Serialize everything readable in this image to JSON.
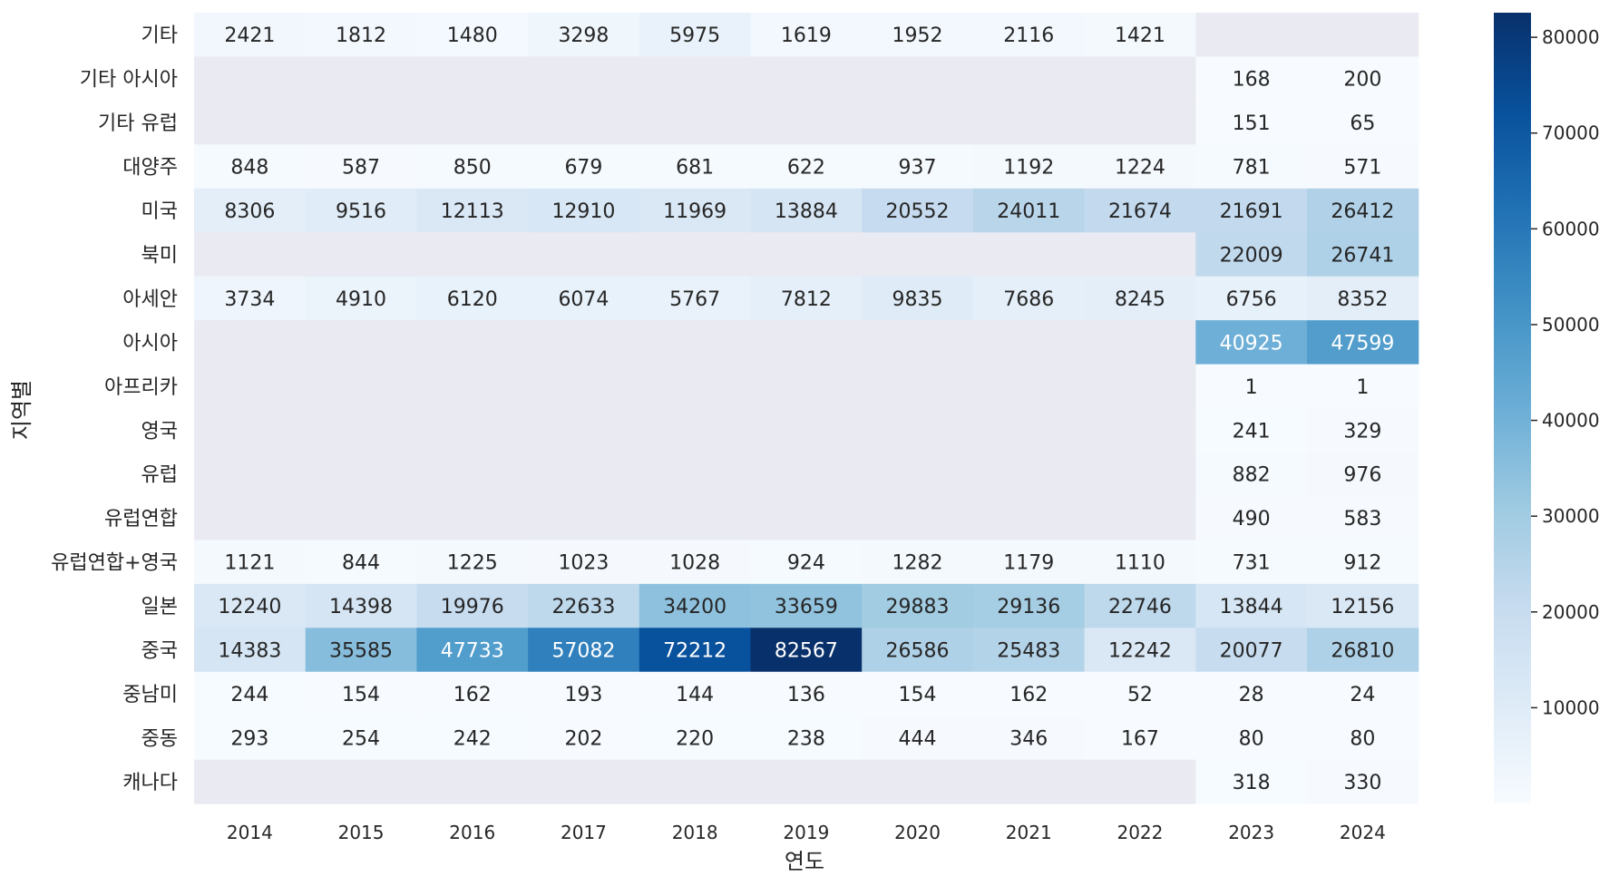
{
  "chart_data": {
    "type": "heatmap",
    "title": "",
    "xlabel": "연도",
    "ylabel": "지역별",
    "x": [
      "2014",
      "2015",
      "2016",
      "2017",
      "2018",
      "2019",
      "2020",
      "2021",
      "2022",
      "2023",
      "2024"
    ],
    "y": [
      "기타",
      "기타 아시아",
      "기타 유럽",
      "대양주",
      "미국",
      "북미",
      "아세안",
      "아시아",
      "아프리카",
      "영국",
      "유럽",
      "유럽연합",
      "유럽연합+영국",
      "일본",
      "중국",
      "중남미",
      "중동",
      "캐나다"
    ],
    "values": [
      [
        2421,
        1812,
        1480,
        3298,
        5975,
        1619,
        1952,
        2116,
        1421,
        null,
        null
      ],
      [
        null,
        null,
        null,
        null,
        null,
        null,
        null,
        null,
        null,
        168,
        200
      ],
      [
        null,
        null,
        null,
        null,
        null,
        null,
        null,
        null,
        null,
        151,
        65
      ],
      [
        848,
        587,
        850,
        679,
        681,
        622,
        937,
        1192,
        1224,
        781,
        571
      ],
      [
        8306,
        9516,
        12113,
        12910,
        11969,
        13884,
        20552,
        24011,
        21674,
        21691,
        26412
      ],
      [
        null,
        null,
        null,
        null,
        null,
        null,
        null,
        null,
        null,
        22009,
        26741
      ],
      [
        3734,
        4910,
        6120,
        6074,
        5767,
        7812,
        9835,
        7686,
        8245,
        6756,
        8352
      ],
      [
        null,
        null,
        null,
        null,
        null,
        null,
        null,
        null,
        null,
        40925,
        47599
      ],
      [
        null,
        null,
        null,
        null,
        null,
        null,
        null,
        null,
        null,
        1,
        1
      ],
      [
        null,
        null,
        null,
        null,
        null,
        null,
        null,
        null,
        null,
        241,
        329
      ],
      [
        null,
        null,
        null,
        null,
        null,
        null,
        null,
        null,
        null,
        882,
        976
      ],
      [
        null,
        null,
        null,
        null,
        null,
        null,
        null,
        null,
        null,
        490,
        583
      ],
      [
        1121,
        844,
        1225,
        1023,
        1028,
        924,
        1282,
        1179,
        1110,
        731,
        912
      ],
      [
        12240,
        14398,
        19976,
        22633,
        34200,
        33659,
        29883,
        29136,
        22746,
        13844,
        12156
      ],
      [
        14383,
        35585,
        47733,
        57082,
        72212,
        82567,
        26586,
        25483,
        12242,
        20077,
        26810
      ],
      [
        244,
        154,
        162,
        193,
        144,
        136,
        154,
        162,
        52,
        28,
        24
      ],
      [
        293,
        254,
        242,
        202,
        220,
        238,
        444,
        346,
        167,
        80,
        80
      ],
      [
        null,
        null,
        null,
        null,
        null,
        null,
        null,
        null,
        null,
        318,
        330
      ]
    ],
    "colorscale": "Blues",
    "vmin": 1,
    "vmax": 82567,
    "colorbar_ticks": [
      10000,
      20000,
      30000,
      40000,
      50000,
      60000,
      70000,
      80000
    ],
    "missing_color": "#eaeaf2",
    "grid": false,
    "legend": "right colorbar"
  }
}
